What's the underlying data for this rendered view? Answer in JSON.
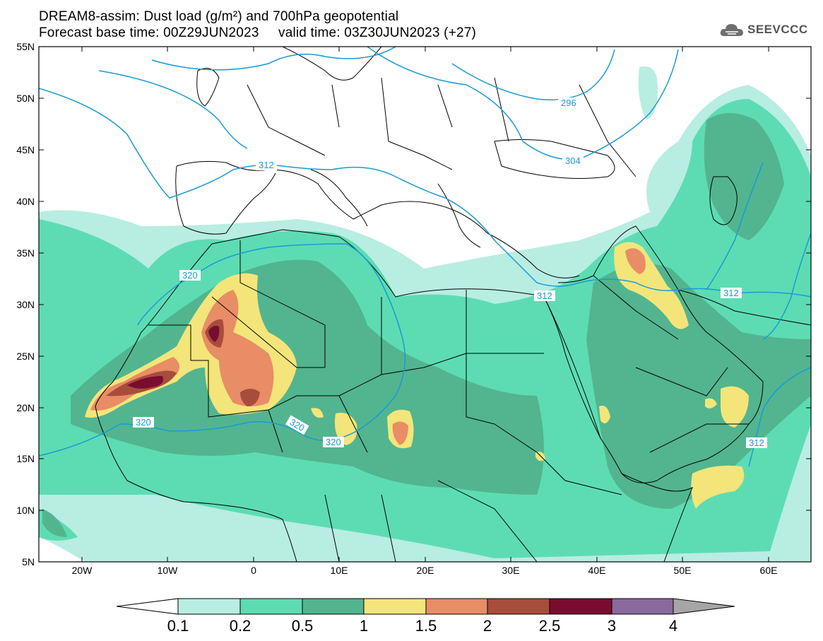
{
  "title": {
    "line1": "DREAM8-assim: Dust load (g/m²) and 700hPa geopotential",
    "line2": "Forecast base time: 00Z29JUN2023     valid time: 03Z30JUN2023 (+27)"
  },
  "logo": {
    "text": "SEEVCCC",
    "icon": "cloud-icon"
  },
  "axes": {
    "lat_labels": [
      "55N",
      "50N",
      "45N",
      "40N",
      "35N",
      "30N",
      "25N",
      "20N",
      "15N",
      "10N",
      "5N"
    ],
    "lon_labels": [
      "20W",
      "10W",
      "0",
      "10E",
      "20E",
      "30E",
      "40E",
      "50E",
      "60E"
    ]
  },
  "contour_labels": [
    "296",
    "304",
    "312",
    "312",
    "312",
    "312",
    "320",
    "320",
    "320",
    "320"
  ],
  "colorbar": {
    "labels": [
      "0.1",
      "0.2",
      "0.5",
      "1",
      "1.5",
      "2",
      "2.5",
      "3",
      "4"
    ],
    "colors": [
      "#ffffff",
      "#b8ede2",
      "#5ddcb3",
      "#52b590",
      "#f3e57a",
      "#e88d66",
      "#a84c3c",
      "#7a0c30",
      "#8a6a9e",
      "#a6a6a6"
    ]
  },
  "colors": {
    "dust_01": "#b8ede2",
    "dust_02": "#5ddcb3",
    "dust_05": "#52b590",
    "dust_1": "#f3e57a",
    "dust_15": "#e88d66",
    "dust_2": "#a84c3c",
    "dust_25": "#7a0c30",
    "contour": "#1a9ad6"
  }
}
